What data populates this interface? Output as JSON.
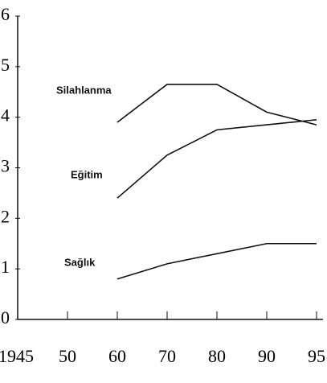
{
  "chart_data": {
    "type": "line",
    "categories": [
      "1945",
      "50",
      "60",
      "70",
      "80",
      "90",
      "95"
    ],
    "series": [
      {
        "name": "Silahlanma",
        "color": "#111111",
        "values": [
          null,
          null,
          3.9,
          4.65,
          4.65,
          4.1,
          3.85
        ]
      },
      {
        "name": "Eğitim",
        "color": "#111111",
        "values": [
          null,
          null,
          2.4,
          3.25,
          3.75,
          3.85,
          3.95
        ]
      },
      {
        "name": "Sağlık",
        "color": "#111111",
        "values": [
          null,
          null,
          0.8,
          1.1,
          1.3,
          1.5,
          1.5
        ]
      }
    ],
    "ylim": [
      0,
      6
    ],
    "yticks": [
      0,
      1,
      2,
      3,
      4,
      5,
      6
    ]
  }
}
